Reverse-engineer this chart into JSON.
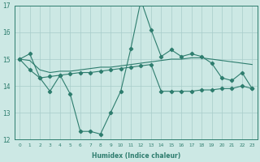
{
  "xlabel": "Humidex (Indice chaleur)",
  "x": [
    0,
    1,
    2,
    3,
    4,
    5,
    6,
    7,
    8,
    9,
    10,
    11,
    12,
    13,
    14,
    15,
    16,
    17,
    18,
    19,
    20,
    21,
    22,
    23
  ],
  "line1": [
    15.0,
    15.2,
    14.3,
    13.8,
    14.4,
    13.7,
    12.3,
    12.3,
    12.2,
    13.0,
    13.8,
    15.4,
    17.2,
    16.1,
    15.1,
    15.35,
    15.1,
    15.2,
    15.1,
    14.85,
    14.3,
    14.2,
    14.5,
    13.9
  ],
  "line2": [
    15.0,
    14.6,
    14.3,
    14.35,
    14.4,
    14.45,
    14.5,
    14.5,
    14.55,
    14.6,
    14.65,
    14.7,
    14.75,
    14.8,
    13.8,
    13.8,
    13.8,
    13.8,
    13.85,
    13.85,
    13.9,
    13.9,
    14.0,
    13.9
  ],
  "line3": [
    15.0,
    14.95,
    14.6,
    14.5,
    14.55,
    14.55,
    14.6,
    14.65,
    14.7,
    14.7,
    14.75,
    14.8,
    14.85,
    14.9,
    14.95,
    15.0,
    15.0,
    15.05,
    15.05,
    15.0,
    14.95,
    14.9,
    14.85,
    14.8
  ],
  "ylim": [
    12,
    17
  ],
  "yticks": [
    12,
    13,
    14,
    15,
    16,
    17
  ],
  "xlim": [
    -0.5,
    23.5
  ],
  "line_color": "#2e7d6e",
  "bg_color": "#cce8e4",
  "grid_color": "#a8ccca"
}
